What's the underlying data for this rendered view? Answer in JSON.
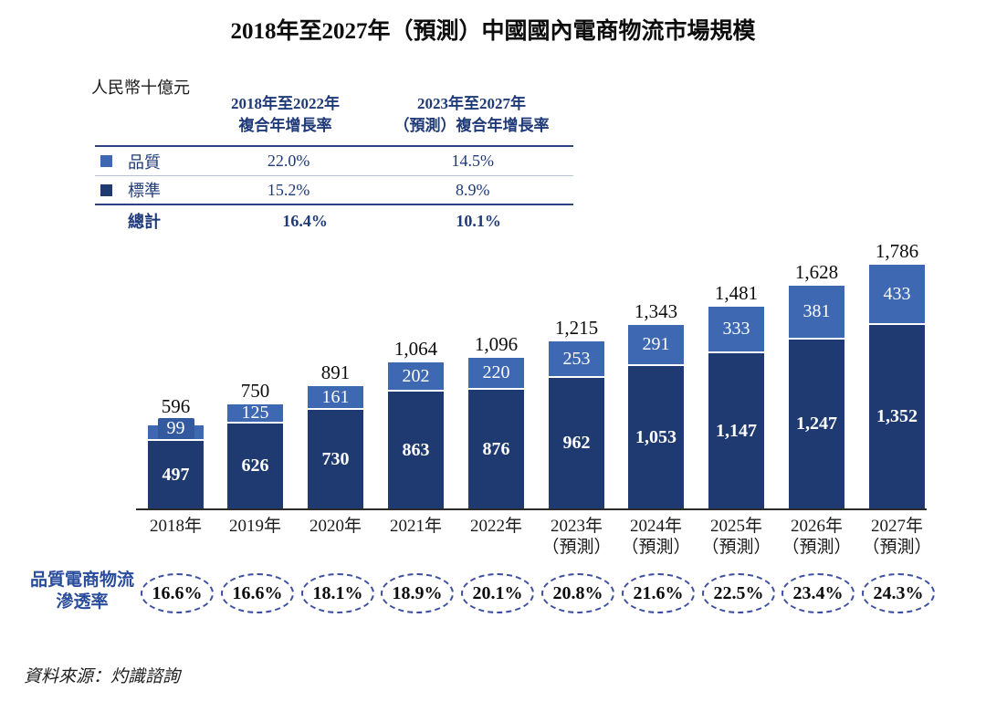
{
  "title": "2018年至2027年（預測）中國國內電商物流市場規模",
  "unit_label": "人民幣十億元",
  "colors": {
    "quality_blue": "#3e68b2",
    "quality_chip_blue": "#33599f",
    "standard_navy": "#1f3a70",
    "table_rule": "#2b4380",
    "table_text": "#1f3a78",
    "oval_border": "#3d4fa1",
    "pen_label_blue": "#2a4c9c"
  },
  "cagr_table": {
    "header": {
      "col1_line1": "2018年至2022年",
      "col1_line2": "複合年增長率",
      "col2_line1": "2023年至2027年",
      "col2_line2": "（預測）複合年增長率"
    },
    "rows": [
      {
        "label": "品質",
        "swatch": "#3e68b2",
        "values": [
          "22.0%",
          "14.5%"
        ]
      },
      {
        "label": "標準",
        "swatch": "#1f3a70",
        "values": [
          "15.2%",
          "8.9%"
        ]
      }
    ],
    "total_row": {
      "label": "總計",
      "values": [
        "16.4%",
        "10.1%"
      ]
    }
  },
  "chart_data": {
    "type": "bar",
    "stacked": true,
    "title": "2018年至2027年（預測）中國國內電商物流市場規模",
    "unit": "人民幣十億元",
    "ylim": [
      0,
      1800
    ],
    "grid": false,
    "legend_position": "table-top-left",
    "categories": [
      "2018年",
      "2019年",
      "2020年",
      "2021年",
      "2022年",
      "2023年\n（預測）",
      "2024年\n（預測）",
      "2025年\n（預測）",
      "2026年\n（預測）",
      "2027年\n（預測）"
    ],
    "series": [
      {
        "name": "標準",
        "color": "#1f3a70",
        "values": [
          497,
          626,
          730,
          863,
          876,
          962,
          1053,
          1147,
          1247,
          1352
        ],
        "value_labels": [
          "497",
          "626",
          "730",
          "863",
          "876",
          "962",
          "1,053",
          "1,147",
          "1,247",
          "1,352"
        ]
      },
      {
        "name": "品質",
        "color": "#3e68b2",
        "values": [
          99,
          125,
          161,
          202,
          220,
          253,
          291,
          333,
          381,
          433
        ],
        "value_labels": [
          "99",
          "125",
          "161",
          "202",
          "220",
          "253",
          "291",
          "333",
          "381",
          "433"
        ]
      }
    ],
    "totals": [
      596,
      750,
      891,
      1064,
      1096,
      1215,
      1343,
      1481,
      1628,
      1786
    ],
    "total_labels": [
      "596",
      "750",
      "891",
      "1,064",
      "1,096",
      "1,215",
      "1,343",
      "1,481",
      "1,628",
      "1,786"
    ],
    "penetration_row": {
      "label_line1": "品質電商物流",
      "label_line2": "滲透率",
      "values": [
        "16.6%",
        "16.6%",
        "18.1%",
        "18.9%",
        "20.1%",
        "20.8%",
        "21.6%",
        "22.5%",
        "23.4%",
        "24.3%"
      ]
    }
  },
  "source": "資料來源：灼識諮詢"
}
